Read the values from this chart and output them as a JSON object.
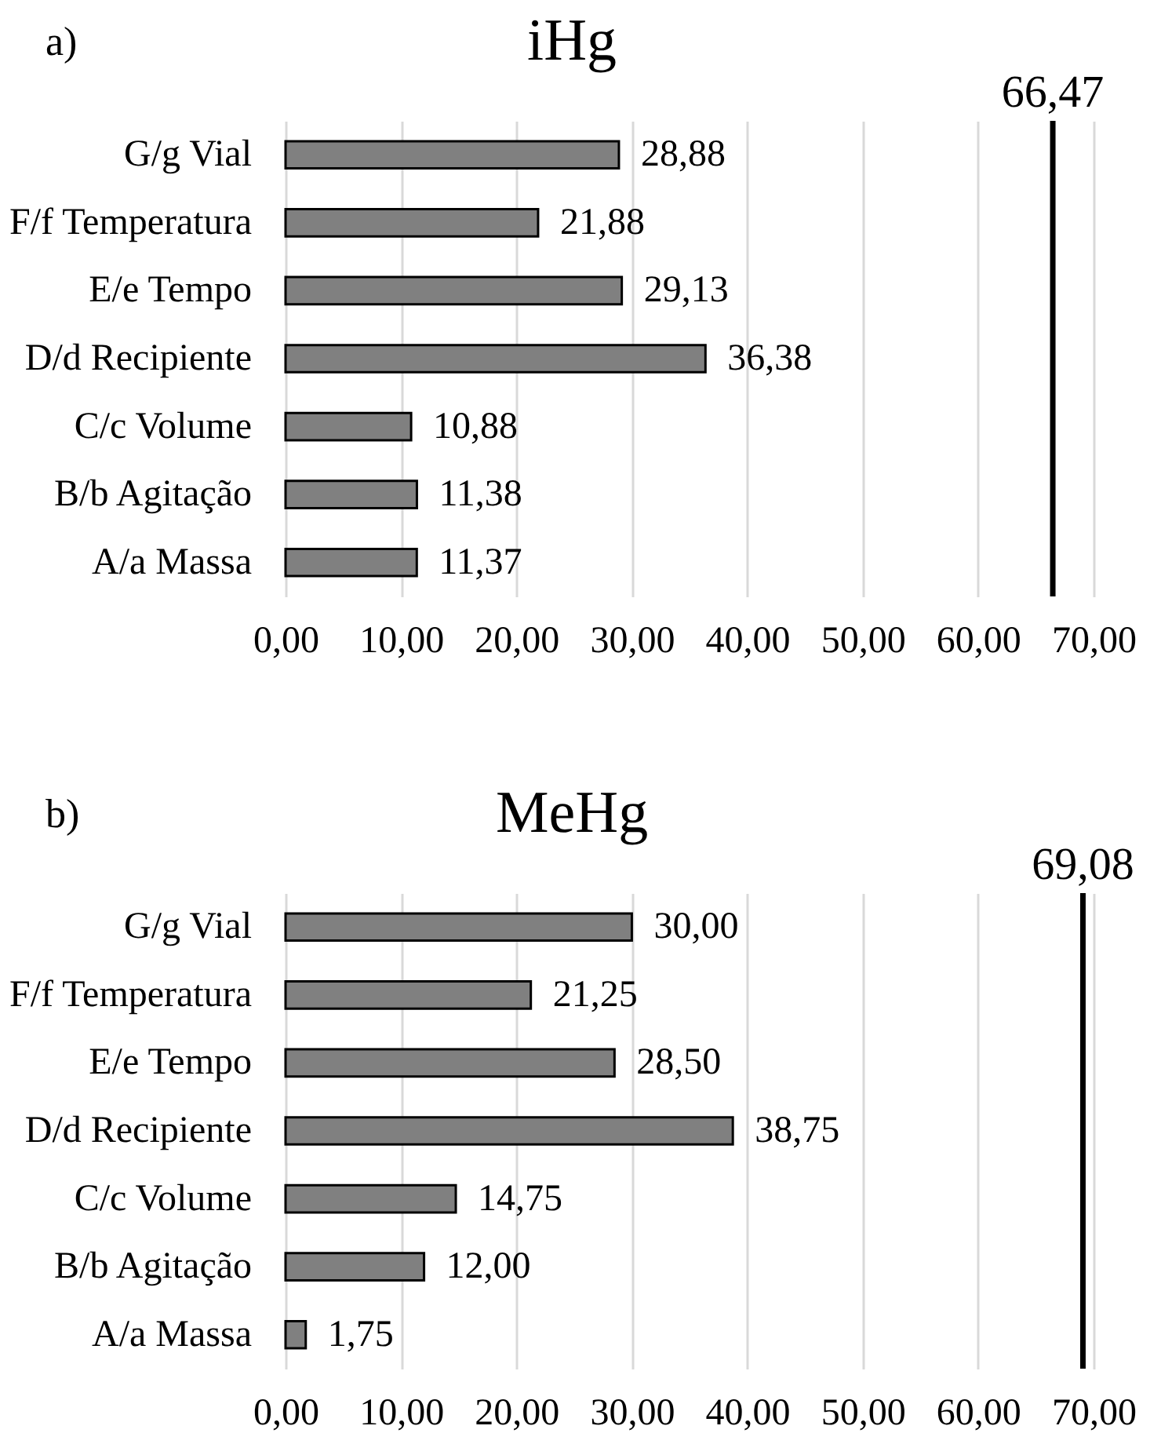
{
  "chart_data": [
    {
      "type": "bar",
      "orientation": "horizontal",
      "title": "iHg",
      "annotations": [
        "a)"
      ],
      "categories": [
        "G/g Vial",
        "F/f Temperatura",
        "E/e Tempo",
        "D/d Recipiente",
        "C/c Volume",
        "B/b Agitação",
        "A/a Massa"
      ],
      "values": [
        28.88,
        21.88,
        29.13,
        36.38,
        10.88,
        11.38,
        11.37
      ],
      "value_labels": [
        "28,88",
        "21,88",
        "29,13",
        "36,38",
        "10,88",
        "11,38",
        "11,37"
      ],
      "color": "#808080",
      "xlim": [
        0,
        70
      ],
      "xticks": [
        {
          "value": 0,
          "label": "0,00"
        },
        {
          "value": 10,
          "label": "10,00"
        },
        {
          "value": 20,
          "label": "20,00"
        },
        {
          "value": 30,
          "label": "30,00"
        },
        {
          "value": 40,
          "label": "40,00"
        },
        {
          "value": 50,
          "label": "50,00"
        },
        {
          "value": 60,
          "label": "60,00"
        },
        {
          "value": 70,
          "label": "70,00"
        }
      ],
      "grid": "x",
      "ref_lines": [
        {
          "axis": "x",
          "value": 66.47,
          "label": "66,47",
          "color": "#000000"
        }
      ]
    },
    {
      "type": "bar",
      "orientation": "horizontal",
      "title": "MeHg",
      "annotations": [
        "b)"
      ],
      "categories": [
        "G/g Vial",
        "F/f Temperatura",
        "E/e Tempo",
        "D/d Recipiente",
        "C/c Volume",
        "B/b Agitação",
        "A/a Massa"
      ],
      "values": [
        30.0,
        21.25,
        28.5,
        38.75,
        14.75,
        12.0,
        1.75
      ],
      "value_labels": [
        "30,00",
        "21,25",
        "28,50",
        "38,75",
        "14,75",
        "12,00",
        "1,75"
      ],
      "color": "#808080",
      "xlim": [
        0,
        70
      ],
      "xticks": [
        {
          "value": 0,
          "label": "0,00"
        },
        {
          "value": 10,
          "label": "10,00"
        },
        {
          "value": 20,
          "label": "20,00"
        },
        {
          "value": 30,
          "label": "30,00"
        },
        {
          "value": 40,
          "label": "40,00"
        },
        {
          "value": 50,
          "label": "50,00"
        },
        {
          "value": 60,
          "label": "60,00"
        },
        {
          "value": 70,
          "label": "70,00"
        }
      ],
      "grid": "x",
      "ref_lines": [
        {
          "axis": "x",
          "value": 69.08,
          "label": "69,08",
          "color": "#000000"
        }
      ]
    }
  ]
}
